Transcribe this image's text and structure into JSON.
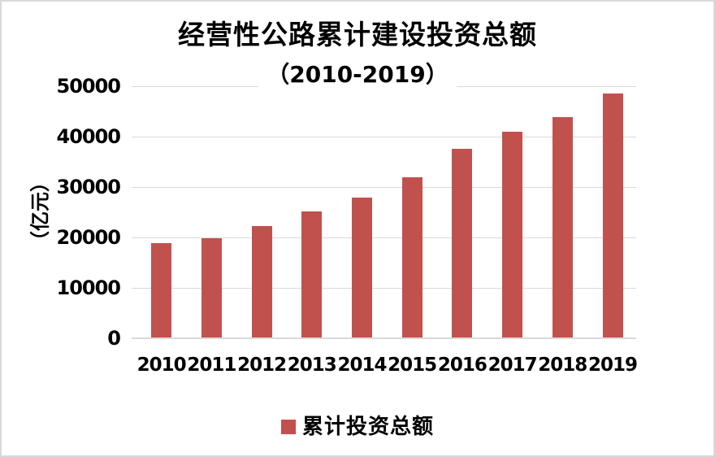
{
  "chart": {
    "title_line1": "经营性公路累计建设投资总额",
    "title_line2": "（2010-2019）",
    "y_axis_title": "（亿元）",
    "legend_label": "累计投资总额",
    "colors": {
      "bar": "#c1514d",
      "gridline": "#d9d9d9",
      "border": "#d9d9d9",
      "text": "#000000",
      "background": "#ffffff"
    }
  },
  "chart_data": {
    "type": "bar",
    "title": "经营性公路累计建设投资总额（2010-2019）",
    "categories": [
      "2010",
      "2011",
      "2012",
      "2013",
      "2014",
      "2015",
      "2016",
      "2017",
      "2018",
      "2019"
    ],
    "series": [
      {
        "name": "累计投资总额",
        "values": [
          18900,
          19900,
          22300,
          25100,
          27900,
          32000,
          37600,
          40900,
          43900,
          48600
        ]
      }
    ],
    "xlabel": "",
    "ylabel": "（亿元）",
    "ylim": [
      0,
      50000
    ],
    "yticks": [
      0,
      10000,
      20000,
      30000,
      40000,
      50000
    ],
    "grid": true,
    "legend_position": "bottom"
  }
}
